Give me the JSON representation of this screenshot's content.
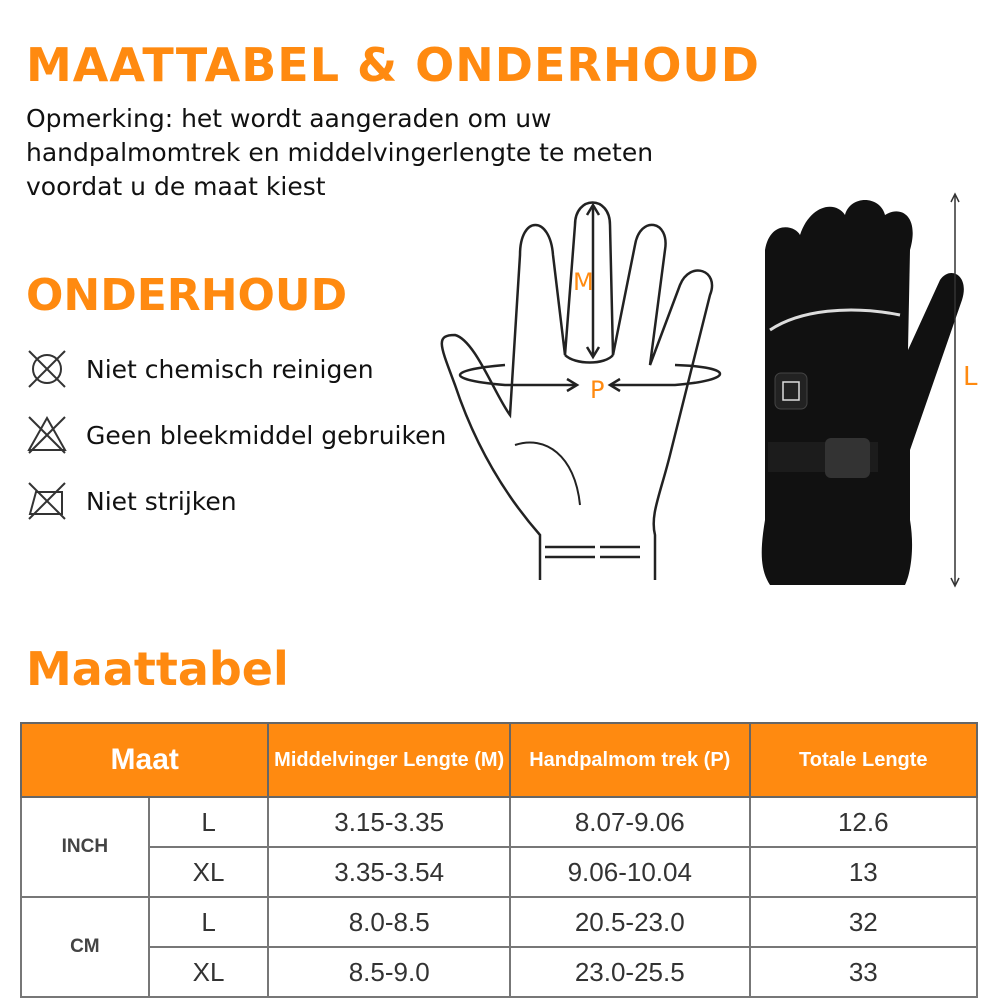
{
  "title": "MAATTABEL & ONDERHOUD",
  "note": "Opmerking: het wordt aangeraden om uw handpalmomtrek en middelvingerlengte te meten voordat u de maat kiest",
  "care": {
    "title": "ONDERHOUD",
    "items": [
      {
        "icon": "no-dry-clean-icon",
        "label": "Niet chemisch reinigen"
      },
      {
        "icon": "no-bleach-icon",
        "label": "Geen bleekmiddel gebruiken"
      },
      {
        "icon": "no-iron-icon",
        "label": "Niet strijken"
      }
    ]
  },
  "diagram": {
    "m_label": "M",
    "p_label": "P",
    "l_label": "L"
  },
  "colors": {
    "accent": "#FF8A10"
  },
  "size_table": {
    "title": "Maattabel",
    "headers": [
      "Maat",
      "Middelvinger Lengte (M)",
      "Handpalmom trek (P)",
      "Totale Lengte"
    ],
    "groups": [
      {
        "unit": "INCH",
        "rows": [
          [
            "L",
            "3.15-3.35",
            "8.07-9.06",
            "12.6"
          ],
          [
            "XL",
            "3.35-3.54",
            "9.06-10.04",
            "13"
          ]
        ]
      },
      {
        "unit": "CM",
        "rows": [
          [
            "L",
            "8.0-8.5",
            "20.5-23.0",
            "32"
          ],
          [
            "XL",
            "8.5-9.0",
            "23.0-25.5",
            "33"
          ]
        ]
      }
    ]
  }
}
